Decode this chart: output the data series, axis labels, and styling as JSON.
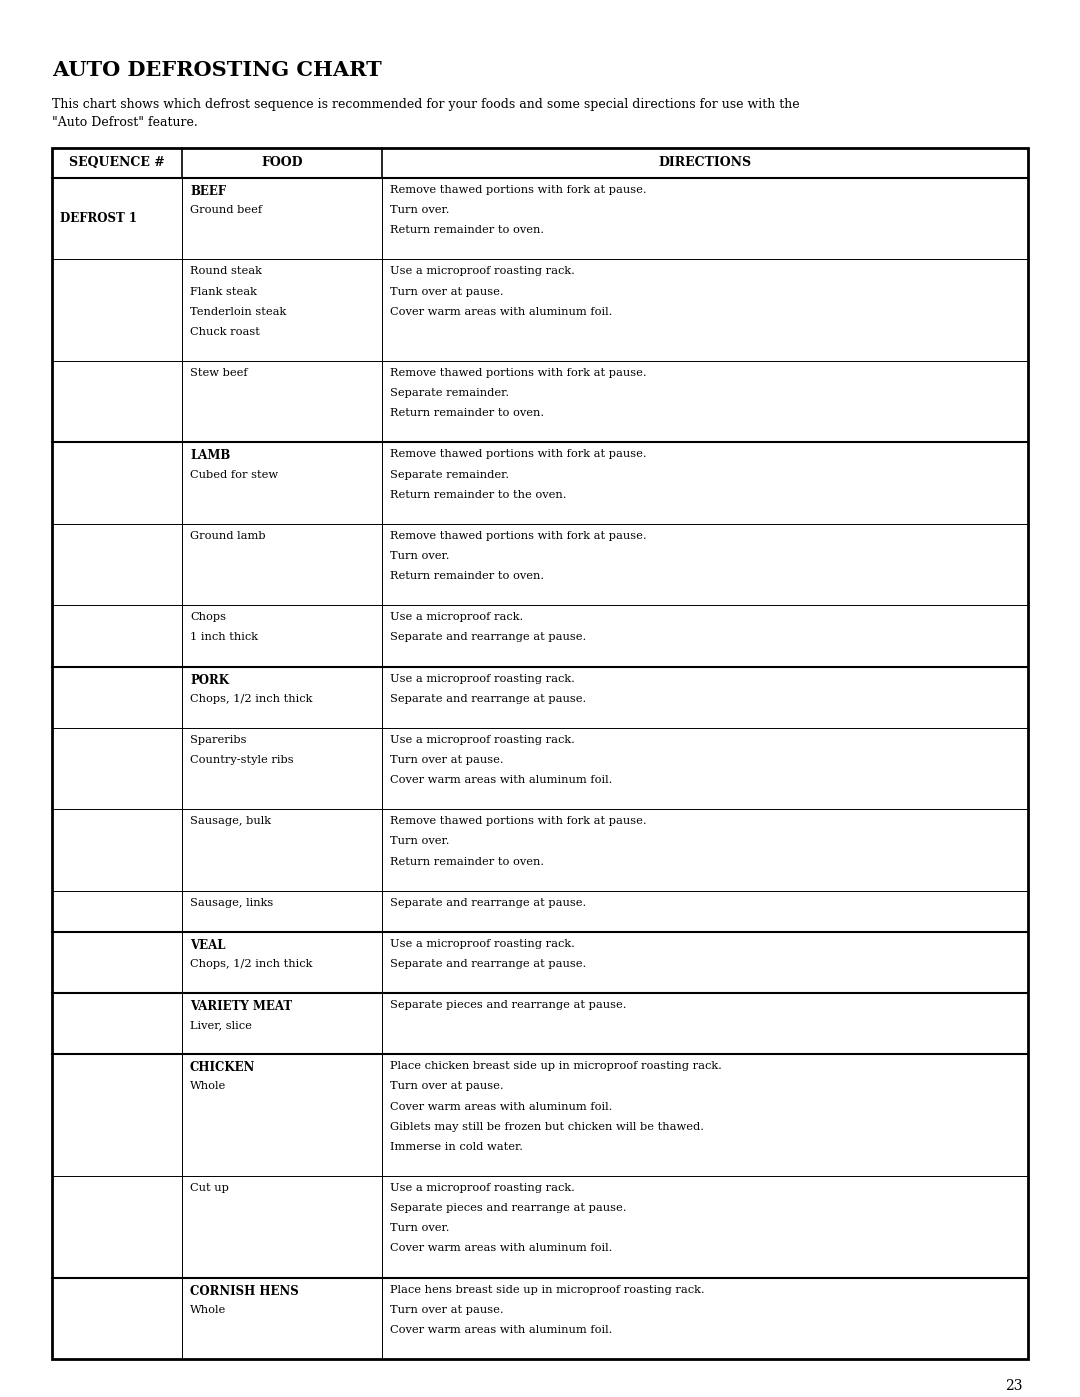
{
  "title": "AUTO DEFROSTING CHART",
  "subtitle": "This chart shows which defrost sequence is recommended for your foods and some special directions for use with the\n\"Auto Defrost\" feature.",
  "page_number": "23",
  "background_color": "#ffffff",
  "col_headers": [
    "SEQUENCE #",
    "FOOD",
    "DIRECTIONS"
  ],
  "rows": [
    {
      "sequence": "DEFROST 1",
      "food_bold": "BEEF",
      "food_normal": "Ground beef",
      "directions": "Remove thawed portions with fork at pause.\nTurn over.\nReturn remainder to oven.",
      "meat_group": "beef",
      "new_group": true
    },
    {
      "sequence": "",
      "food_bold": "",
      "food_normal": "Round steak\nFlank steak\nTenderloin steak\nChuck roast",
      "directions": "Use a microproof roasting rack.\nTurn over at pause.\nCover warm areas with aluminum foil.",
      "meat_group": "beef",
      "new_group": false
    },
    {
      "sequence": "",
      "food_bold": "",
      "food_normal": "Stew beef",
      "directions": "Remove thawed portions with fork at pause.\nSeparate remainder.\nReturn remainder to oven.",
      "meat_group": "beef",
      "new_group": false
    },
    {
      "sequence": "",
      "food_bold": "LAMB",
      "food_normal": "Cubed for stew",
      "directions": "Remove thawed portions with fork at pause.\nSeparate remainder.\nReturn remainder to the oven.",
      "meat_group": "lamb",
      "new_group": true
    },
    {
      "sequence": "",
      "food_bold": "",
      "food_normal": "Ground lamb",
      "directions": "Remove thawed portions with fork at pause.\nTurn over.\nReturn remainder to oven.",
      "meat_group": "lamb",
      "new_group": false
    },
    {
      "sequence": "",
      "food_bold": "",
      "food_normal": "Chops\n1 inch thick",
      "directions": "Use a microproof rack.\nSeparate and rearrange at pause.",
      "meat_group": "lamb",
      "new_group": false
    },
    {
      "sequence": "",
      "food_bold": "PORK",
      "food_normal": "Chops, 1/2 inch thick",
      "directions": "Use a microproof roasting rack.\nSeparate and rearrange at pause.",
      "meat_group": "pork",
      "new_group": true
    },
    {
      "sequence": "",
      "food_bold": "",
      "food_normal": "Spareribs\nCountry-style ribs",
      "directions": "Use a microproof roasting rack.\nTurn over at pause.\nCover warm areas with aluminum foil.",
      "meat_group": "pork",
      "new_group": false
    },
    {
      "sequence": "",
      "food_bold": "",
      "food_normal": "Sausage, bulk",
      "directions": "Remove thawed portions with fork at pause.\nTurn over.\nReturn remainder to oven.",
      "meat_group": "pork",
      "new_group": false
    },
    {
      "sequence": "",
      "food_bold": "",
      "food_normal": "Sausage, links",
      "directions": "Separate and rearrange at pause.",
      "meat_group": "pork",
      "new_group": false
    },
    {
      "sequence": "",
      "food_bold": "VEAL",
      "food_normal": "Chops, 1/2 inch thick",
      "directions": "Use a microproof roasting rack.\nSeparate and rearrange at pause.",
      "meat_group": "veal",
      "new_group": true
    },
    {
      "sequence": "",
      "food_bold": "VARIETY MEAT",
      "food_normal": "Liver, slice",
      "directions": "Separate pieces and rearrange at pause.",
      "meat_group": "variety",
      "new_group": true
    },
    {
      "sequence": "",
      "food_bold": "CHICKEN",
      "food_normal": "Whole",
      "directions": "Place chicken breast side up in microproof roasting rack.\nTurn over at pause.\nCover warm areas with aluminum foil.\nGiblets may still be frozen but chicken will be thawed.\nImmerse in cold water.",
      "meat_group": "chicken",
      "new_group": true
    },
    {
      "sequence": "",
      "food_bold": "",
      "food_normal": "Cut up",
      "directions": "Use a microproof roasting rack.\nSeparate pieces and rearrange at pause.\nTurn over.\nCover warm areas with aluminum foil.",
      "meat_group": "chicken",
      "new_group": false
    },
    {
      "sequence": "",
      "food_bold": "CORNISH HENS",
      "food_normal": "Whole",
      "directions": "Place hens breast side up in microproof roasting rack.\nTurn over at pause.\nCover warm areas with aluminum foil.",
      "meat_group": "cornish",
      "new_group": true
    }
  ]
}
